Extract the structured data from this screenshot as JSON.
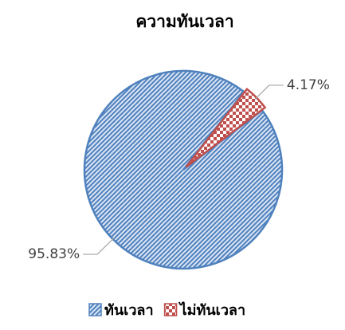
{
  "chart_data": {
    "type": "pie",
    "title": "ความทันเวลา",
    "categories": [
      "ทันเวลา",
      "ไม่ทันเวลา"
    ],
    "values": [
      95.83,
      4.17
    ],
    "value_labels": [
      "95.83%",
      "4.17%"
    ],
    "colors": [
      "#4f81bd",
      "#c0504d"
    ],
    "legend": "bottom"
  }
}
